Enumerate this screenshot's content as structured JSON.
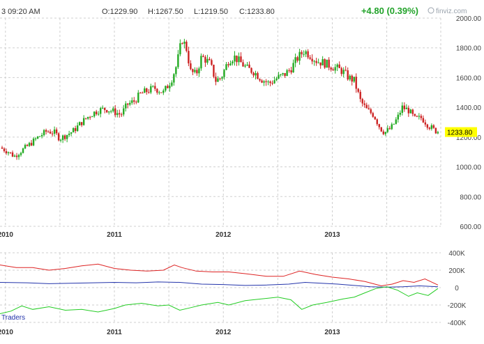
{
  "header": {
    "time": "3 09:20 AM",
    "open": "O:1229.90",
    "high": "H:1267.50",
    "low": "L:1219.50",
    "close": "C:1233.80",
    "change": "+4.80 (0.39%)",
    "watermark": "finviz.com",
    "last_price_label": "1233.80"
  },
  "colors": {
    "up_candle": "#22aa22",
    "down_candle": "#cc2222",
    "grid": "#cfcfcf",
    "last_price_bg": "#ffff00",
    "cot_red": "#dd2222",
    "cot_blue": "#2233aa",
    "cot_green": "#22cc22"
  },
  "chart_data": [
    {
      "type": "candlestick",
      "ylim": [
        600,
        2000
      ],
      "y_ticks": [
        "2000.00",
        "1800.00",
        "1600.00",
        "1400.00",
        "1200.00",
        "1000.00",
        "800.00",
        "600.00"
      ],
      "x_ticks": [
        "2010",
        "2011",
        "2012",
        "2013"
      ],
      "last_price": 1233.8,
      "close_path": [
        [
          2009.95,
          1130
        ],
        [
          2010.03,
          1100
        ],
        [
          2010.08,
          1070
        ],
        [
          2010.15,
          1110
        ],
        [
          2010.22,
          1150
        ],
        [
          2010.3,
          1200
        ],
        [
          2010.38,
          1240
        ],
        [
          2010.45,
          1230
        ],
        [
          2010.5,
          1190
        ],
        [
          2010.55,
          1210
        ],
        [
          2010.62,
          1240
        ],
        [
          2010.7,
          1300
        ],
        [
          2010.78,
          1350
        ],
        [
          2010.85,
          1380
        ],
        [
          2010.92,
          1390
        ],
        [
          2011.0,
          1370
        ],
        [
          2011.06,
          1350
        ],
        [
          2011.12,
          1420
        ],
        [
          2011.18,
          1440
        ],
        [
          2011.24,
          1490
        ],
        [
          2011.3,
          1510
        ],
        [
          2011.37,
          1530
        ],
        [
          2011.45,
          1500
        ],
        [
          2011.52,
          1580
        ],
        [
          2011.57,
          1680
        ],
        [
          2011.62,
          1860
        ],
        [
          2011.66,
          1800
        ],
        [
          2011.7,
          1640
        ],
        [
          2011.75,
          1620
        ],
        [
          2011.8,
          1740
        ],
        [
          2011.84,
          1720
        ],
        [
          2011.88,
          1690
        ],
        [
          2011.93,
          1580
        ],
        [
          2011.98,
          1600
        ],
        [
          2012.05,
          1720
        ],
        [
          2012.1,
          1740
        ],
        [
          2012.16,
          1700
        ],
        [
          2012.22,
          1660
        ],
        [
          2012.28,
          1640
        ],
        [
          2012.35,
          1590
        ],
        [
          2012.42,
          1560
        ],
        [
          2012.5,
          1600
        ],
        [
          2012.56,
          1620
        ],
        [
          2012.62,
          1660
        ],
        [
          2012.68,
          1730
        ],
        [
          2012.74,
          1780
        ],
        [
          2012.8,
          1750
        ],
        [
          2012.86,
          1710
        ],
        [
          2012.92,
          1700
        ],
        [
          2012.98,
          1680
        ],
        [
          2013.05,
          1660
        ],
        [
          2013.1,
          1640
        ],
        [
          2013.15,
          1600
        ],
        [
          2013.2,
          1580
        ],
        [
          2013.26,
          1440
        ],
        [
          2013.32,
          1380
        ],
        [
          2013.38,
          1350
        ],
        [
          2013.44,
          1260
        ],
        [
          2013.48,
          1230
        ],
        [
          2013.54,
          1260
        ],
        [
          2013.6,
          1330
        ],
        [
          2013.64,
          1400
        ],
        [
          2013.7,
          1380
        ],
        [
          2013.76,
          1320
        ],
        [
          2013.82,
          1330
        ],
        [
          2013.88,
          1280
        ],
        [
          2013.93,
          1250
        ],
        [
          2013.97,
          1233.8
        ]
      ]
    },
    {
      "type": "line",
      "ylim": [
        -400000,
        400000
      ],
      "y_ticks": [
        "400K",
        "200K",
        "0",
        "-200K",
        "-400K"
      ],
      "x_ticks": [
        "2010",
        "2011",
        "2012",
        "2013"
      ],
      "legend": "Traders",
      "series": [
        {
          "color": "#dd2222",
          "points": [
            [
              2009.95,
              260000
            ],
            [
              2010.1,
              230000
            ],
            [
              2010.25,
              230000
            ],
            [
              2010.4,
              200000
            ],
            [
              2010.55,
              220000
            ],
            [
              2010.7,
              250000
            ],
            [
              2010.85,
              270000
            ],
            [
              2011.0,
              220000
            ],
            [
              2011.15,
              200000
            ],
            [
              2011.3,
              190000
            ],
            [
              2011.45,
              200000
            ],
            [
              2011.55,
              260000
            ],
            [
              2011.62,
              230000
            ],
            [
              2011.75,
              190000
            ],
            [
              2011.9,
              180000
            ],
            [
              2012.05,
              180000
            ],
            [
              2012.2,
              160000
            ],
            [
              2012.4,
              130000
            ],
            [
              2012.55,
              130000
            ],
            [
              2012.7,
              190000
            ],
            [
              2012.85,
              150000
            ],
            [
              2013.0,
              120000
            ],
            [
              2013.15,
              100000
            ],
            [
              2013.3,
              70000
            ],
            [
              2013.45,
              20000
            ],
            [
              2013.55,
              40000
            ],
            [
              2013.65,
              80000
            ],
            [
              2013.75,
              60000
            ],
            [
              2013.85,
              100000
            ],
            [
              2013.97,
              30000
            ]
          ]
        },
        {
          "color": "#2233aa",
          "points": [
            [
              2009.95,
              60000
            ],
            [
              2010.2,
              55000
            ],
            [
              2010.4,
              45000
            ],
            [
              2010.6,
              50000
            ],
            [
              2010.8,
              55000
            ],
            [
              2011.0,
              60000
            ],
            [
              2011.2,
              55000
            ],
            [
              2011.4,
              65000
            ],
            [
              2011.6,
              60000
            ],
            [
              2011.8,
              40000
            ],
            [
              2012.0,
              35000
            ],
            [
              2012.2,
              25000
            ],
            [
              2012.4,
              30000
            ],
            [
              2012.6,
              40000
            ],
            [
              2012.75,
              60000
            ],
            [
              2012.9,
              50000
            ],
            [
              2013.05,
              40000
            ],
            [
              2013.2,
              25000
            ],
            [
              2013.35,
              10000
            ],
            [
              2013.5,
              5000
            ],
            [
              2013.65,
              10000
            ],
            [
              2013.8,
              20000
            ],
            [
              2013.97,
              10000
            ]
          ]
        },
        {
          "color": "#22cc22",
          "points": [
            [
              2009.95,
              -300000
            ],
            [
              2010.05,
              -270000
            ],
            [
              2010.15,
              -210000
            ],
            [
              2010.25,
              -250000
            ],
            [
              2010.4,
              -220000
            ],
            [
              2010.55,
              -260000
            ],
            [
              2010.7,
              -250000
            ],
            [
              2010.85,
              -280000
            ],
            [
              2011.0,
              -240000
            ],
            [
              2011.1,
              -200000
            ],
            [
              2011.25,
              -180000
            ],
            [
              2011.4,
              -210000
            ],
            [
              2011.5,
              -200000
            ],
            [
              2011.6,
              -260000
            ],
            [
              2011.7,
              -230000
            ],
            [
              2011.8,
              -200000
            ],
            [
              2011.95,
              -170000
            ],
            [
              2012.05,
              -200000
            ],
            [
              2012.2,
              -150000
            ],
            [
              2012.35,
              -130000
            ],
            [
              2012.5,
              -110000
            ],
            [
              2012.62,
              -140000
            ],
            [
              2012.72,
              -250000
            ],
            [
              2012.82,
              -200000
            ],
            [
              2012.95,
              -170000
            ],
            [
              2013.1,
              -130000
            ],
            [
              2013.2,
              -110000
            ],
            [
              2013.3,
              -60000
            ],
            [
              2013.4,
              -10000
            ],
            [
              2013.5,
              10000
            ],
            [
              2013.6,
              -30000
            ],
            [
              2013.7,
              -100000
            ],
            [
              2013.78,
              -60000
            ],
            [
              2013.88,
              -90000
            ],
            [
              2013.97,
              -10000
            ]
          ]
        }
      ]
    }
  ]
}
